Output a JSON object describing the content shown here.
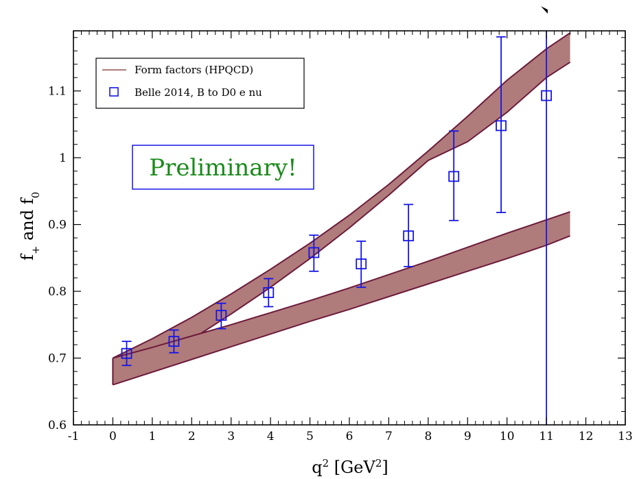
{
  "chart_data": {
    "type": "scatter",
    "xlabel": "q",
    "xlabel_sup": "2",
    "xlabel_unit_open": " [GeV",
    "xlabel_unit_sup": "2",
    "xlabel_unit_close": "]",
    "ylabel_f": "f",
    "ylabel_plus": "+",
    "ylabel_and": " and f",
    "ylabel_zero": "0",
    "xlim": [
      -1,
      13
    ],
    "ylim": [
      0.6,
      1.19
    ],
    "x_ticks": [
      -1,
      0,
      1,
      2,
      3,
      4,
      5,
      6,
      7,
      8,
      9,
      10,
      11,
      12,
      13
    ],
    "x_tick_labels": [
      "-1",
      "0",
      "1",
      "2",
      "3",
      "4",
      "5",
      "6",
      "7",
      "8",
      "9",
      "10",
      "11",
      "12",
      "13"
    ],
    "y_ticks": [
      0.6,
      0.7,
      0.8,
      0.9,
      1.0,
      1.1
    ],
    "y_tick_labels": [
      "0.6",
      "0.7",
      "0.8",
      "0.9",
      "1",
      "1.1"
    ],
    "grid": false,
    "legend_position": "top-left",
    "band_color": "#b07b7b",
    "band_edge_color": "#6b1a3a",
    "point_color": "#1414e6",
    "series": [
      {
        "name": "Form factors (HPQCD)",
        "kind": "band",
        "label": "f_plus",
        "x": [
          0,
          1,
          2,
          3,
          4,
          5,
          6,
          7,
          8,
          9,
          10,
          11,
          11.6
        ],
        "lower": [
          0.66,
          0.693,
          0.728,
          0.766,
          0.806,
          0.849,
          0.895,
          0.944,
          0.996,
          1.024,
          1.068,
          1.12,
          1.143
        ],
        "upper": [
          0.7,
          0.729,
          0.761,
          0.796,
          0.833,
          0.872,
          0.914,
          0.96,
          1.01,
          1.062,
          1.116,
          1.163,
          1.187
        ]
      },
      {
        "name": "Form factors (HPQCD)",
        "kind": "band",
        "label": "f_zero",
        "x": [
          0,
          1,
          2,
          3,
          4,
          5,
          6,
          7,
          8,
          9,
          10,
          11,
          11.6
        ],
        "lower": [
          0.66,
          0.679,
          0.698,
          0.717,
          0.736,
          0.755,
          0.773,
          0.792,
          0.811,
          0.83,
          0.849,
          0.869,
          0.883
        ],
        "upper": [
          0.7,
          0.716,
          0.733,
          0.75,
          0.768,
          0.786,
          0.805,
          0.825,
          0.845,
          0.866,
          0.887,
          0.907,
          0.919
        ]
      },
      {
        "name": "Belle 2014, B to D0 e nu",
        "kind": "points",
        "x": [
          0.35,
          1.55,
          2.75,
          3.95,
          5.1,
          6.3,
          7.5,
          8.65,
          9.85,
          11.0
        ],
        "y": [
          0.707,
          0.725,
          0.764,
          0.798,
          0.858,
          0.841,
          0.883,
          0.972,
          1.048,
          1.093
        ],
        "yerr_low": [
          0.018,
          0.017,
          0.02,
          0.021,
          0.028,
          0.035,
          0.046,
          0.066,
          0.13,
          0.6
        ],
        "yerr_high": [
          0.018,
          0.017,
          0.018,
          0.021,
          0.026,
          0.034,
          0.047,
          0.068,
          0.133,
          0.25
        ]
      }
    ],
    "annotation": "Preliminary!"
  }
}
